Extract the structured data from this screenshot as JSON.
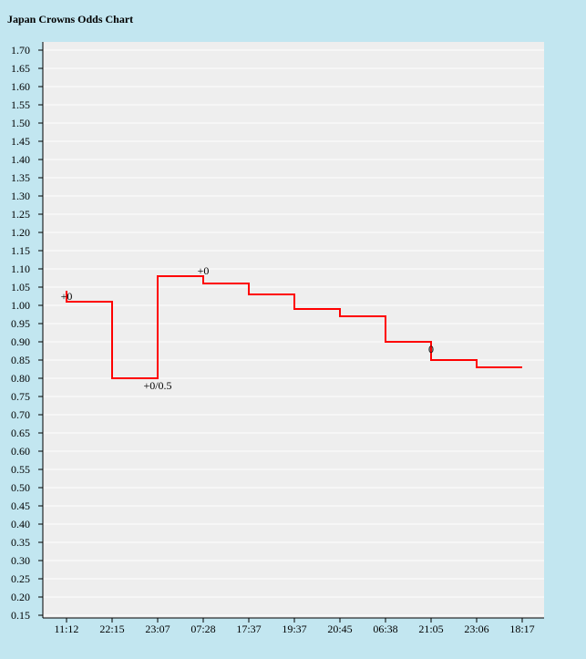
{
  "title": "Japan Crowns Odds Chart",
  "chart_data": {
    "type": "line",
    "step": true,
    "title": "Japan Crowns Odds Chart",
    "xlabel": "",
    "ylabel": "",
    "ylim": [
      0.15,
      1.7
    ],
    "y_ticks": [
      "1.70",
      "1.65",
      "1.60",
      "1.55",
      "1.50",
      "1.45",
      "1.40",
      "1.35",
      "1.30",
      "1.25",
      "1.20",
      "1.15",
      "1.10",
      "1.05",
      "1.00",
      "0.95",
      "0.90",
      "0.85",
      "0.80",
      "0.75",
      "0.70",
      "0.65",
      "0.60",
      "0.55",
      "0.50",
      "0.45",
      "0.40",
      "0.35",
      "0.30",
      "0.25",
      "0.20",
      "0.15"
    ],
    "categories": [
      "11:12",
      "22:15",
      "23:07",
      "07:28",
      "17:37",
      "19:37",
      "20:45",
      "06:38",
      "21:05",
      "23:06",
      "18:17"
    ],
    "initial_value": 1.04,
    "values": [
      1.01,
      0.8,
      1.08,
      1.06,
      1.03,
      0.99,
      0.97,
      0.9,
      0.85,
      0.83,
      0.83
    ],
    "annotations": [
      {
        "index": 0,
        "text": "+0"
      },
      {
        "index": 2,
        "text": "+0/0.5"
      },
      {
        "index": 3,
        "text": "+0"
      },
      {
        "index": 8,
        "text": "0"
      }
    ],
    "grid": true,
    "line_color": "#ff0000",
    "plot_background": "#eeeeee",
    "page_background": "#c2e6f0"
  }
}
